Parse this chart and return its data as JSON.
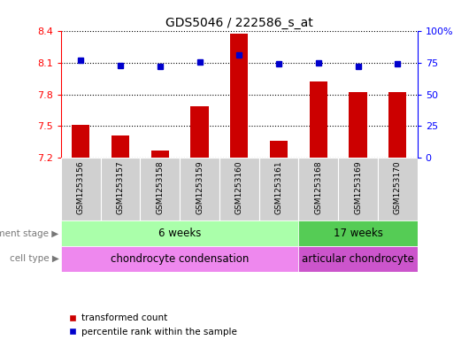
{
  "title": "GDS5046 / 222586_s_at",
  "samples": [
    "GSM1253156",
    "GSM1253157",
    "GSM1253158",
    "GSM1253159",
    "GSM1253160",
    "GSM1253161",
    "GSM1253168",
    "GSM1253169",
    "GSM1253170"
  ],
  "transformed_count": [
    7.51,
    7.41,
    7.27,
    7.69,
    8.38,
    7.36,
    7.92,
    7.82,
    7.82
  ],
  "percentile_rank": [
    77,
    73,
    72,
    76,
    81,
    74,
    75,
    72,
    74
  ],
  "ylim_left": [
    7.2,
    8.4
  ],
  "yticks_left": [
    7.2,
    7.5,
    7.8,
    8.1,
    8.4
  ],
  "ylim_right": [
    0,
    100
  ],
  "yticks_right": [
    0,
    25,
    50,
    75,
    100
  ],
  "bar_color": "#cc0000",
  "dot_color": "#0000cc",
  "development_stage_groups": [
    {
      "label": "6 weeks",
      "start": 0,
      "end": 5,
      "color": "#aaffaa"
    },
    {
      "label": "17 weeks",
      "start": 6,
      "end": 8,
      "color": "#55cc55"
    }
  ],
  "cell_type_groups": [
    {
      "label": "chondrocyte condensation",
      "start": 0,
      "end": 5,
      "color": "#ee88ee"
    },
    {
      "label": "articular chondrocyte",
      "start": 6,
      "end": 8,
      "color": "#cc55cc"
    }
  ],
  "dev_stage_label": "development stage",
  "cell_type_label": "cell type",
  "legend_bar_label": "transformed count",
  "legend_dot_label": "percentile rank within the sample",
  "background_color": "#ffffff",
  "sample_box_color": "#d0d0d0"
}
